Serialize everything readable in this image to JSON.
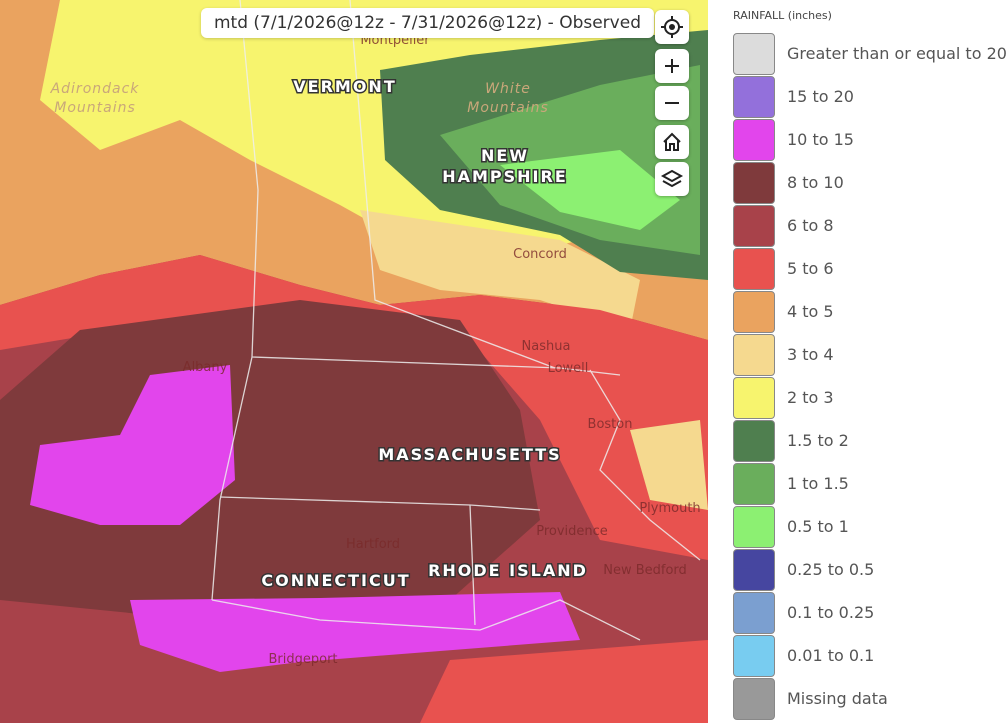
{
  "header": {
    "title": "mtd (7/1/2026@12z - 7/31/2026@12z) - Observed"
  },
  "map": {
    "states": [
      {
        "lines": [
          "VERMONT"
        ]
      },
      {
        "lines": [
          "NEW",
          "HAMPSHIRE"
        ]
      },
      {
        "lines": [
          "MASSACHUSETTS"
        ]
      },
      {
        "lines": [
          "CONNECTICUT"
        ]
      },
      {
        "lines": [
          "RHODE ISLAND"
        ]
      }
    ],
    "terrain": [
      {
        "lines": [
          "Adirondack",
          "Mountains"
        ]
      },
      {
        "lines": [
          "White",
          "Mountains"
        ]
      }
    ],
    "cities": [
      "Montpelier",
      "Concord",
      "Nashua",
      "Lowell",
      "Boston",
      "Albany",
      "Hartford",
      "Providence",
      "New Bedford",
      "Plymouth",
      "Bridgeport"
    ]
  },
  "legend": {
    "title": "RAINFALL",
    "unit": "(inches)",
    "items": [
      {
        "label": "Greater than or equal to 20",
        "color": "#dcdcdc"
      },
      {
        "label": "15 to 20",
        "color": "#9370db"
      },
      {
        "label": "10 to 15",
        "color": "#e245ec"
      },
      {
        "label": "8 to 10",
        "color": "#7f3a3c"
      },
      {
        "label": "6 to 8",
        "color": "#a8424a"
      },
      {
        "label": "5 to 6",
        "color": "#e8524f"
      },
      {
        "label": "4 to 5",
        "color": "#eaa35f"
      },
      {
        "label": "3 to 4",
        "color": "#f5d98f"
      },
      {
        "label": "2 to 3",
        "color": "#f7f46e"
      },
      {
        "label": "1.5 to 2",
        "color": "#4f7f4f"
      },
      {
        "label": "1 to 1.5",
        "color": "#6aae5c"
      },
      {
        "label": "0.5 to 1",
        "color": "#8cf072"
      },
      {
        "label": "0.25 to 0.5",
        "color": "#4646a0"
      },
      {
        "label": "0.1 to 0.25",
        "color": "#7b9fd0"
      },
      {
        "label": "0.01 to 0.1",
        "color": "#78ccf0"
      },
      {
        "label": "Missing data",
        "color": "#999999"
      }
    ]
  }
}
